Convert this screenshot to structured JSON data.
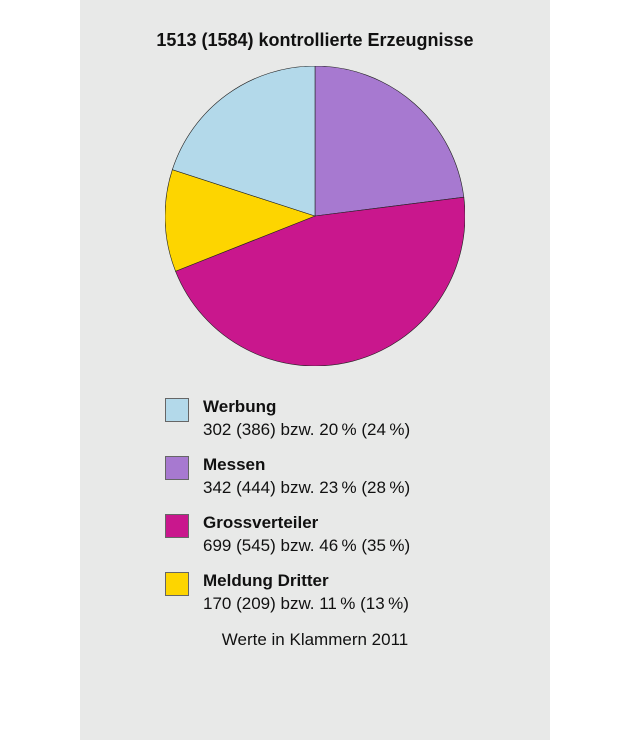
{
  "chart": {
    "type": "pie",
    "title": "1513 (1584) kontrollierte Erzeugnisse",
    "title_fontsize": 18,
    "title_fontweight": "bold",
    "background_color": "#e8e9e8",
    "stroke_color": "#222222",
    "stroke_width": 0.6,
    "radius": 150,
    "start_angle_deg": -90,
    "direction": "cw",
    "slice_order": [
      "Messen",
      "Grossverteiler",
      "Meldung Dritter",
      "Werbung"
    ],
    "slices": {
      "Werbung": {
        "value": 302,
        "percent": 20,
        "prev_value": 386,
        "prev_percent": 24,
        "color": "#b3d9ea"
      },
      "Messen": {
        "value": 342,
        "percent": 23,
        "prev_value": 444,
        "prev_percent": 28,
        "color": "#a779d0"
      },
      "Grossverteiler": {
        "value": 699,
        "percent": 46,
        "prev_value": 545,
        "prev_percent": 35,
        "color": "#c9178d"
      },
      "Meldung Dritter": {
        "value": 170,
        "percent": 11,
        "prev_value": 209,
        "prev_percent": 13,
        "color": "#fdd500"
      }
    },
    "legend_order": [
      "Werbung",
      "Messen",
      "Grossverteiler",
      "Meldung Dritter"
    ],
    "legend_swatch_border": "#666666",
    "legend_fontsize": 17,
    "abbrev": "bzw.",
    "footnote": "Werte in Klammern 2011"
  }
}
